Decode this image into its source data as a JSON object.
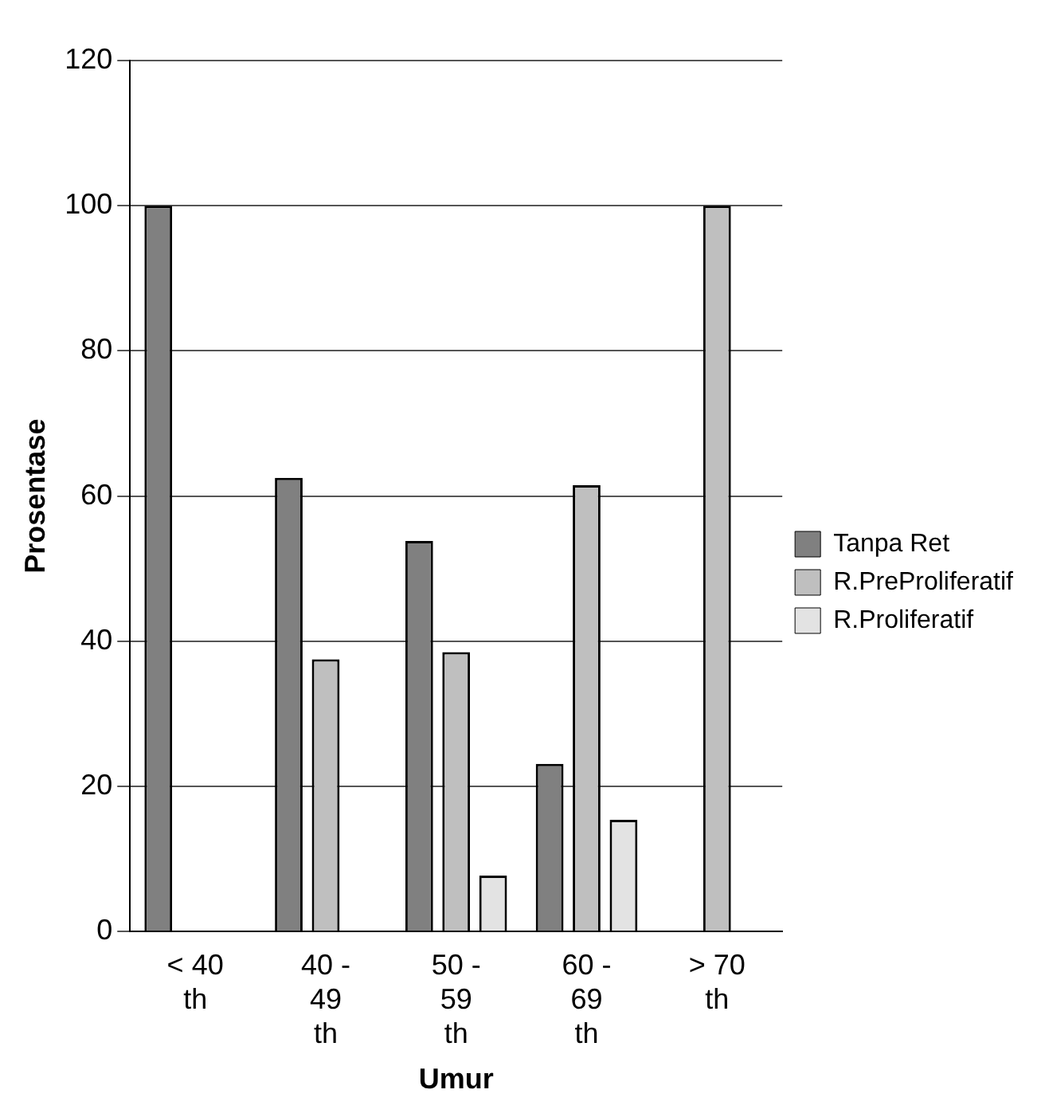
{
  "chart_data": {
    "type": "bar",
    "xlabel": "Umur",
    "ylabel": "Prosentase",
    "categories": [
      "< 40 th",
      "40 - 49 th",
      "50 - 59 th",
      "60 - 69 th",
      "> 70 th"
    ],
    "series": [
      {
        "name": "Tanpa Ret",
        "color": "#808080",
        "values": [
          100,
          62.5,
          53.8,
          23.1,
          0
        ]
      },
      {
        "name": "R.PreProliferatif",
        "color": "#bfbfbf",
        "values": [
          0,
          37.5,
          38.5,
          61.5,
          100
        ]
      },
      {
        "name": "R.Proliferatif",
        "color": "#e3e3e3",
        "values": [
          0,
          0,
          7.7,
          15.4,
          0
        ]
      }
    ],
    "ylim": [
      0,
      120
    ],
    "yticks": [
      0,
      20,
      40,
      60,
      80,
      100,
      120
    ],
    "grid": "y",
    "legend": "right"
  }
}
